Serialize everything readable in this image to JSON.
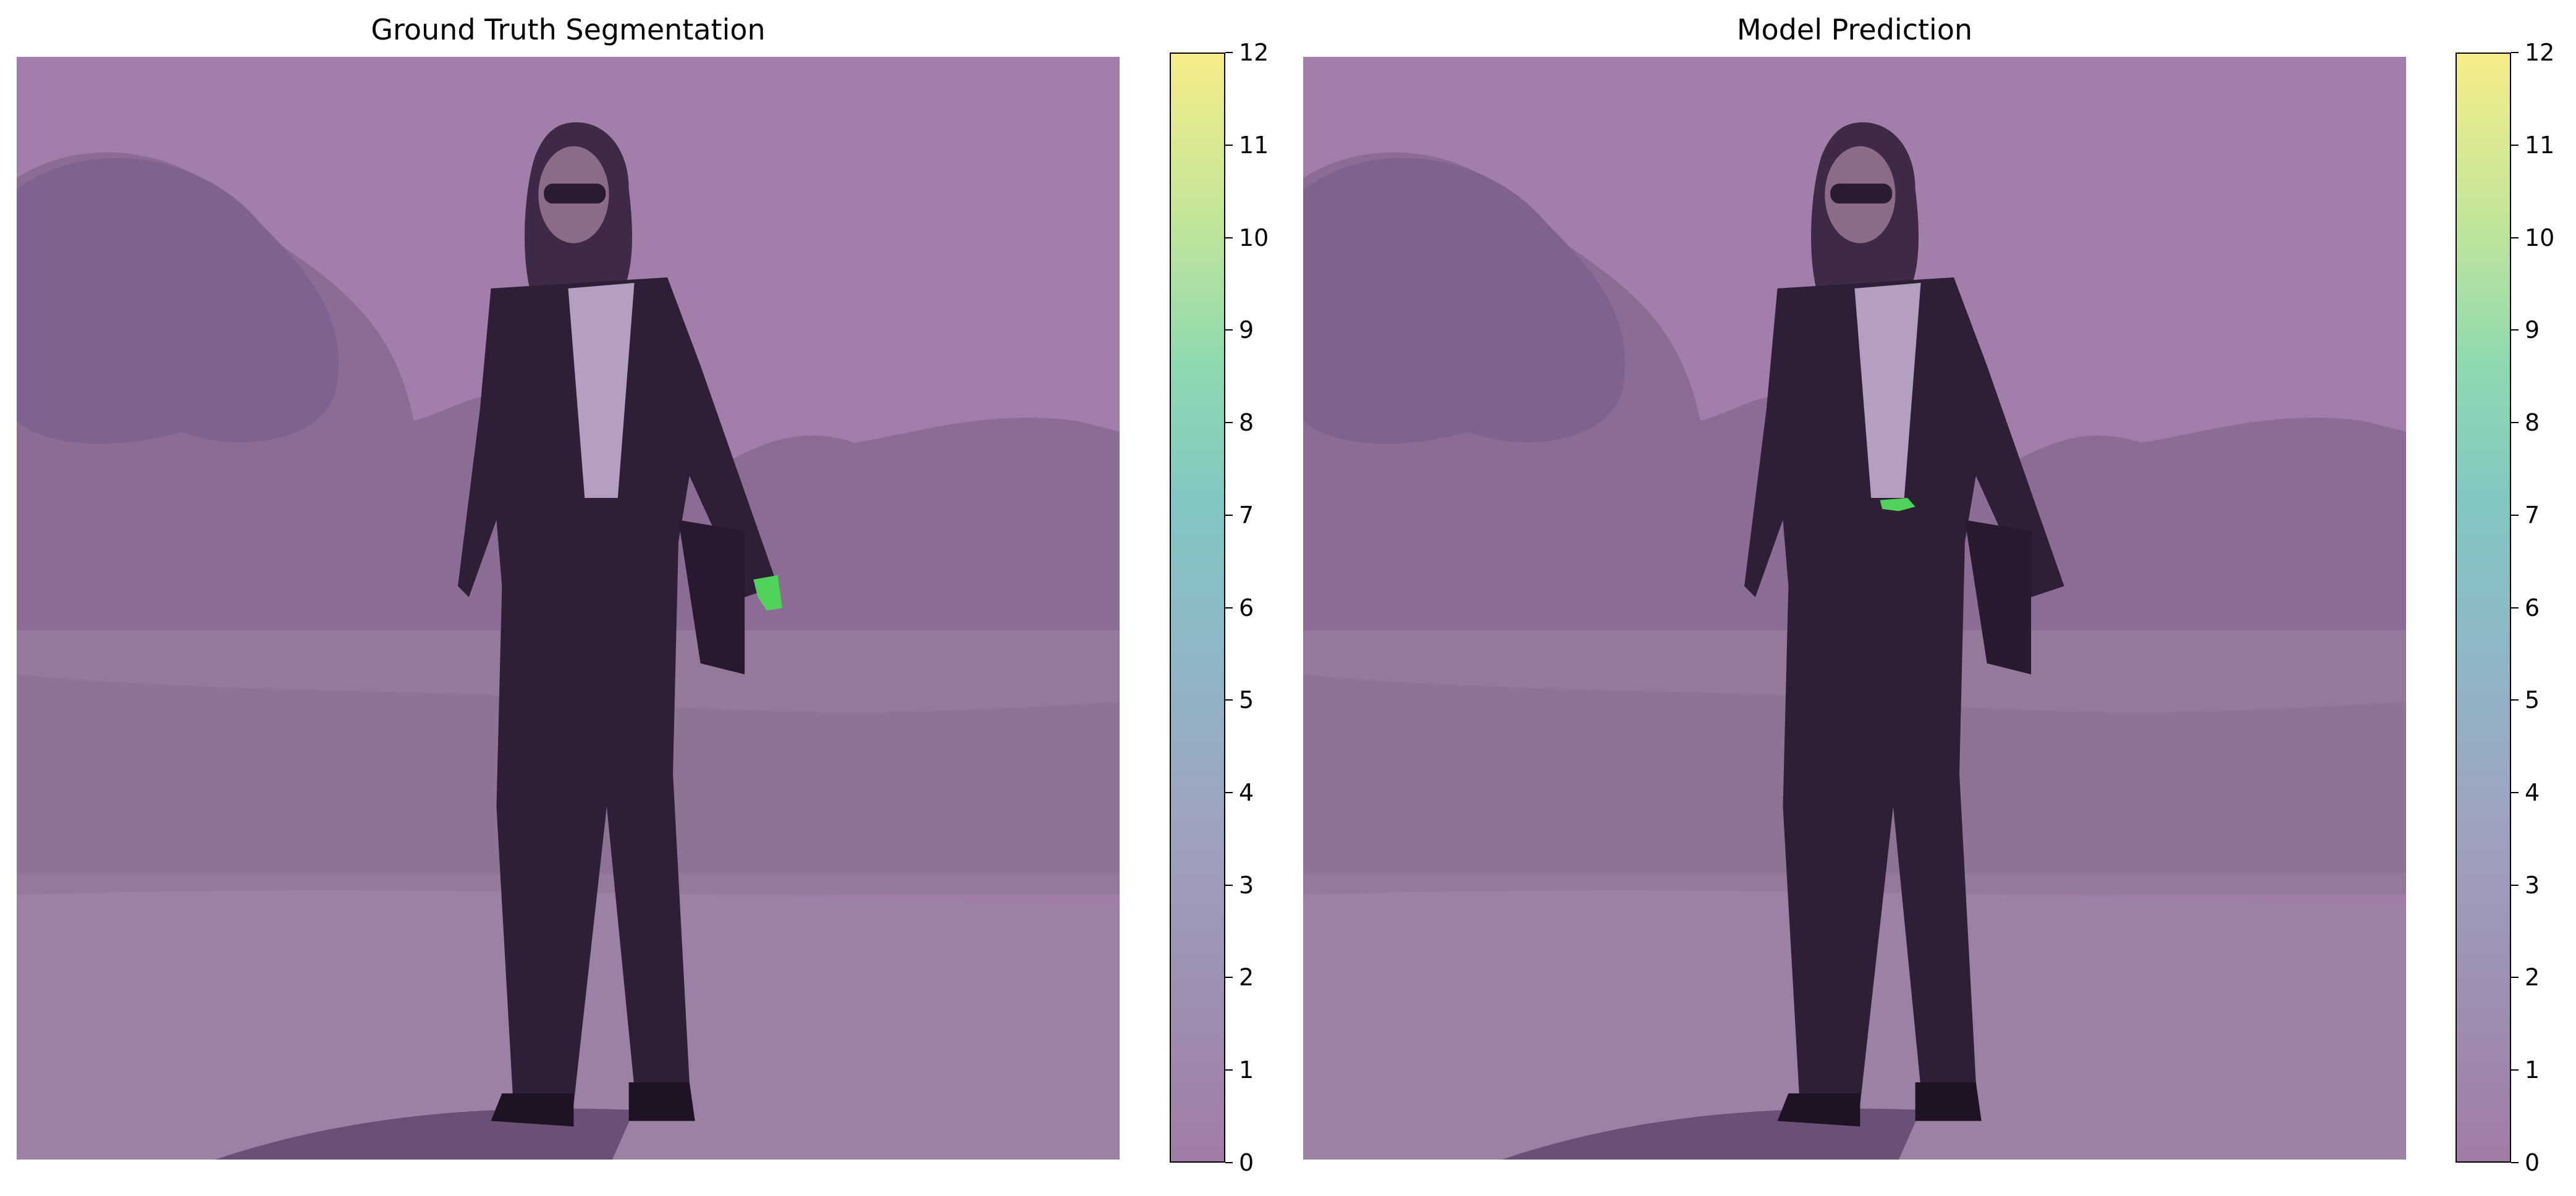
{
  "panels": [
    {
      "title": "Ground Truth Segmentation",
      "mask_marks": [
        {
          "class_value": 8,
          "location": "right wrist",
          "color": "#4fd35a"
        }
      ]
    },
    {
      "title": "Model Prediction",
      "mask_marks": [
        {
          "class_value": 8,
          "location": "waist / belt",
          "color": "#4fd35a"
        }
      ]
    }
  ],
  "colorbar": {
    "range": [
      0,
      12
    ],
    "ticks": [
      "0",
      "1",
      "2",
      "3",
      "4",
      "5",
      "6",
      "7",
      "8",
      "9",
      "10",
      "11",
      "12"
    ],
    "colormap": "viridis-alpha-overlay",
    "low_color": "#a07ca6",
    "high_color": "#f6ec88"
  },
  "colors": {
    "overlay_base": "#a07ca6",
    "highlight": "#4fd35a"
  }
}
